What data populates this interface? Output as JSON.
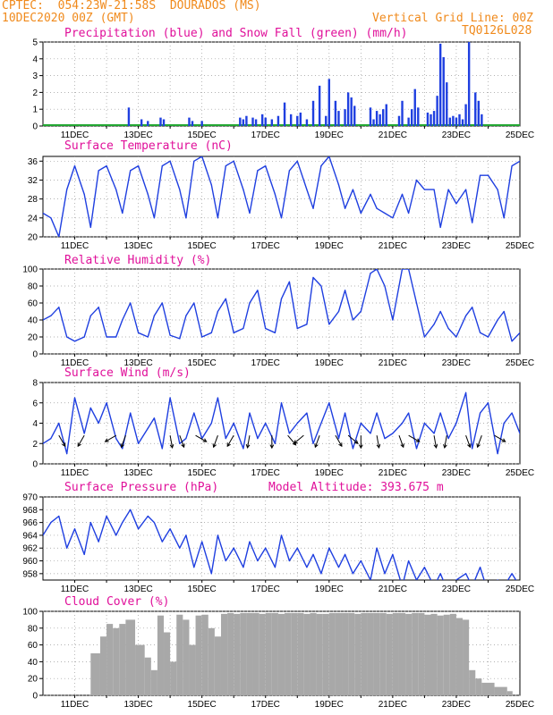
{
  "header": {
    "line1": "CPTEC:  054:23W-21:58S  DOURADOS (MS)",
    "line2": "10DEC2020 00Z (GMT)",
    "grid_note": "Vertical Grid Line: 00Z",
    "code": "TQ0126L028"
  },
  "colors": {
    "header": "#f08a1c",
    "title": "#e0109a",
    "series": "#1f3fe0",
    "snow": "#22a832",
    "cloud": "#a8a8a8",
    "grid": "#9a9a9a",
    "arrows": "#000000"
  },
  "chart_data": [
    {
      "id": "precip",
      "type": "bar",
      "title": "Precipitation (blue) and Snow Fall (green) (mm/h)",
      "x_ticks": [
        "11DEC",
        "13DEC",
        "15DEC",
        "17DEC",
        "19DEC",
        "21DEC",
        "23DEC",
        "25DEC"
      ],
      "ylim": [
        0,
        5
      ],
      "yticks": [
        0,
        1,
        2,
        3,
        4,
        5
      ],
      "grid": true,
      "series_color": "blue",
      "x_days": [
        2.7,
        3.1,
        3.3,
        3.7,
        3.8,
        4.6,
        4.7,
        5.0,
        6.2,
        6.3,
        6.4,
        6.6,
        6.7,
        6.9,
        7.0,
        7.2,
        7.4,
        7.6,
        7.8,
        8.0,
        8.1,
        8.3,
        8.5,
        8.7,
        8.9,
        9.0,
        9.2,
        9.3,
        9.5,
        9.6,
        9.7,
        9.8,
        10.3,
        10.4,
        10.5,
        10.6,
        10.7,
        10.8,
        11.2,
        11.3,
        11.5,
        11.6,
        11.7,
        11.8,
        12.1,
        12.2,
        12.3,
        12.4,
        12.5,
        12.6,
        12.7,
        12.8,
        12.9,
        13.0,
        13.1,
        13.2,
        13.3,
        13.4,
        13.6,
        13.7,
        13.8
      ],
      "values": [
        1.1,
        0.4,
        0.3,
        0.5,
        0.4,
        0.5,
        0.3,
        0.3,
        0.5,
        0.4,
        0.6,
        0.5,
        0.4,
        0.7,
        0.5,
        0.4,
        0.6,
        1.4,
        0.7,
        0.6,
        0.8,
        0.4,
        1.5,
        2.4,
        0.6,
        2.8,
        1.5,
        0.9,
        1.0,
        2.0,
        1.7,
        1.2,
        1.1,
        0.4,
        0.9,
        0.7,
        1.0,
        1.3,
        0.6,
        1.5,
        0.5,
        1.0,
        2.2,
        1.1,
        0.8,
        0.7,
        0.9,
        1.8,
        4.9,
        4.1,
        2.6,
        0.5,
        0.6,
        0.5,
        0.7,
        0.4,
        1.3,
        5.0,
        2.0,
        1.5,
        0.7
      ],
      "snow_values": [
        0
      ]
    },
    {
      "id": "temp",
      "type": "line",
      "title": "Surface Temperature (nC)",
      "x_ticks": [
        "11DEC",
        "13DEC",
        "15DEC",
        "17DEC",
        "19DEC",
        "21DEC",
        "23DEC",
        "25DEC"
      ],
      "ylim": [
        20,
        37
      ],
      "yticks": [
        20,
        24,
        28,
        32,
        36
      ],
      "grid": true,
      "x_days": [
        0,
        0.25,
        0.5,
        0.75,
        1,
        1.3,
        1.5,
        1.75,
        2,
        2.3,
        2.5,
        2.75,
        3,
        3.3,
        3.5,
        3.75,
        4,
        4.3,
        4.5,
        4.75,
        5,
        5.3,
        5.5,
        5.75,
        6,
        6.3,
        6.5,
        6.75,
        7,
        7.3,
        7.5,
        7.75,
        8,
        8.3,
        8.5,
        8.75,
        9,
        9.3,
        9.5,
        9.75,
        10,
        10.3,
        10.5,
        10.75,
        11,
        11.3,
        11.5,
        11.75,
        12,
        12.3,
        12.5,
        12.75,
        13,
        13.3,
        13.5,
        13.75,
        14,
        14.3,
        14.5,
        14.75,
        15
      ],
      "values": [
        25,
        24,
        20,
        30,
        35,
        29,
        22,
        34,
        35,
        30,
        25,
        34,
        35,
        29,
        24,
        35,
        36,
        30,
        24,
        36,
        37,
        31,
        24,
        35,
        36,
        30,
        25,
        34,
        35,
        29,
        24,
        34,
        36,
        30,
        26,
        35,
        37,
        31,
        26,
        30,
        25,
        29,
        26,
        25,
        24,
        29,
        25,
        32,
        30,
        30,
        22,
        30,
        27,
        30,
        23,
        33,
        33,
        30,
        24,
        35,
        36
      ]
    },
    {
      "id": "rh",
      "type": "line",
      "title": "Relative Humidity (%)",
      "x_ticks": [
        "11DEC",
        "13DEC",
        "15DEC",
        "17DEC",
        "19DEC",
        "21DEC",
        "23DEC",
        "25DEC"
      ],
      "ylim": [
        0,
        100
      ],
      "yticks": [
        0,
        20,
        40,
        60,
        80,
        100
      ],
      "grid": true,
      "x_days": [
        0,
        0.25,
        0.5,
        0.75,
        1,
        1.3,
        1.5,
        1.75,
        2,
        2.3,
        2.5,
        2.75,
        3,
        3.3,
        3.5,
        3.75,
        4,
        4.3,
        4.5,
        4.75,
        5,
        5.3,
        5.5,
        5.75,
        6,
        6.3,
        6.5,
        6.75,
        7,
        7.3,
        7.5,
        7.75,
        8,
        8.3,
        8.5,
        8.75,
        9,
        9.3,
        9.5,
        9.75,
        10,
        10.3,
        10.5,
        10.75,
        11,
        11.3,
        11.5,
        11.75,
        12,
        12.3,
        12.5,
        12.75,
        13,
        13.3,
        13.5,
        13.75,
        14,
        14.3,
        14.5,
        14.75,
        15
      ],
      "values": [
        40,
        45,
        55,
        20,
        15,
        20,
        45,
        55,
        20,
        20,
        40,
        60,
        25,
        20,
        45,
        60,
        22,
        18,
        45,
        60,
        20,
        25,
        50,
        65,
        25,
        30,
        60,
        75,
        30,
        25,
        65,
        85,
        30,
        35,
        90,
        80,
        35,
        50,
        75,
        40,
        50,
        95,
        100,
        80,
        40,
        100,
        100,
        60,
        20,
        35,
        50,
        30,
        20,
        45,
        55,
        25,
        20,
        40,
        50,
        15,
        25
      ]
    },
    {
      "id": "wind",
      "type": "line",
      "title": "Surface Wind (m/s)",
      "x_ticks": [
        "11DEC",
        "13DEC",
        "15DEC",
        "17DEC",
        "19DEC",
        "21DEC",
        "23DEC",
        "25DEC"
      ],
      "ylim": [
        0,
        8
      ],
      "yticks": [
        0,
        2,
        4,
        6,
        8
      ],
      "grid": true,
      "x_days": [
        0,
        0.25,
        0.5,
        0.75,
        1,
        1.3,
        1.5,
        1.75,
        2,
        2.3,
        2.5,
        2.75,
        3,
        3.3,
        3.5,
        3.75,
        4,
        4.3,
        4.5,
        4.75,
        5,
        5.3,
        5.5,
        5.75,
        6,
        6.3,
        6.5,
        6.75,
        7,
        7.3,
        7.5,
        7.75,
        8,
        8.3,
        8.5,
        8.75,
        9,
        9.3,
        9.5,
        9.75,
        10,
        10.3,
        10.5,
        10.75,
        11,
        11.3,
        11.5,
        11.75,
        12,
        12.3,
        12.5,
        12.75,
        13,
        13.3,
        13.5,
        13.75,
        14,
        14.3,
        14.5,
        14.75,
        15
      ],
      "values": [
        2,
        2.5,
        4,
        1,
        6.5,
        3,
        5.5,
        4,
        6,
        2.5,
        1.5,
        5,
        2,
        3.5,
        4.5,
        1.5,
        6.5,
        2,
        2.5,
        5,
        2.5,
        4,
        6.5,
        2.5,
        4,
        1.5,
        5,
        2.5,
        4,
        2,
        6,
        3,
        4,
        5,
        2,
        4,
        6,
        2.5,
        5,
        1.5,
        4,
        3,
        5,
        2.5,
        3,
        4,
        5,
        1.5,
        4,
        3,
        5,
        2.5,
        4,
        7,
        1.5,
        5,
        6,
        1,
        4,
        5,
        3
      ],
      "vector_days": [
        0.5,
        1.3,
        2.3,
        2.6,
        4.0,
        4.3,
        4.8,
        5.5,
        6.0,
        6.5,
        7.2,
        7.7,
        8.2,
        8.7,
        9.2,
        9.6,
        10.0,
        10.5,
        11.2,
        11.5,
        12.3,
        12.7,
        13.3,
        13.8,
        14.2
      ],
      "vector_dir_deg": [
        150,
        210,
        240,
        200,
        170,
        160,
        120,
        200,
        210,
        190,
        180,
        140,
        230,
        200,
        150,
        130,
        180,
        170,
        160,
        120,
        170,
        190,
        160,
        200,
        120
      ]
    },
    {
      "id": "pres",
      "type": "line",
      "title": "Surface Pressure (hPa)",
      "model_altitude_label": "Model Altitude: 393.675 m",
      "x_ticks": [
        "11DEC",
        "13DEC",
        "15DEC",
        "17DEC",
        "19DEC",
        "21DEC",
        "23DEC",
        "25DEC"
      ],
      "ylim": [
        957,
        970
      ],
      "yticks": [
        958,
        960,
        962,
        964,
        966,
        968,
        970
      ],
      "grid": true,
      "x_days": [
        0,
        0.25,
        0.5,
        0.75,
        1,
        1.3,
        1.5,
        1.75,
        2,
        2.3,
        2.5,
        2.75,
        3,
        3.3,
        3.5,
        3.75,
        4,
        4.3,
        4.5,
        4.75,
        5,
        5.3,
        5.5,
        5.75,
        6,
        6.3,
        6.5,
        6.75,
        7,
        7.3,
        7.5,
        7.75,
        8,
        8.3,
        8.5,
        8.75,
        9,
        9.3,
        9.5,
        9.75,
        10,
        10.3,
        10.5,
        10.75,
        11,
        11.3,
        11.5,
        11.75,
        12,
        12.3,
        12.5,
        12.75,
        13,
        13.3,
        13.5,
        13.75,
        14,
        14.3,
        14.5,
        14.75,
        15
      ],
      "values": [
        964,
        966,
        967,
        962,
        965,
        961,
        966,
        963,
        967,
        964,
        966,
        968,
        965,
        967,
        966,
        963,
        965,
        962,
        964,
        959,
        963,
        958,
        964,
        960,
        962,
        959,
        963,
        960,
        962,
        959,
        964,
        960,
        962,
        959,
        961,
        958,
        962,
        959,
        961,
        958,
        960,
        957,
        962,
        958,
        961,
        956,
        960,
        957,
        959,
        956,
        958,
        955,
        957,
        958,
        956,
        959,
        955,
        957,
        956,
        958,
        956
      ]
    },
    {
      "id": "cloud",
      "type": "bar",
      "title": "Cloud Cover (%)",
      "x_ticks": [
        "11DEC",
        "13DEC",
        "15DEC",
        "17DEC",
        "19DEC",
        "21DEC",
        "23DEC",
        "25DEC"
      ],
      "ylim": [
        0,
        100
      ],
      "yticks": [
        0,
        20,
        40,
        60,
        80,
        100
      ],
      "grid": true,
      "x_days": [
        1.5,
        1.8,
        2.0,
        2.2,
        2.4,
        2.6,
        2.9,
        3.2,
        3.4,
        3.6,
        3.8,
        4.0,
        4.2,
        4.4,
        4.6,
        4.8,
        5.0,
        5.2,
        5.4,
        5.6,
        5.8,
        6.0,
        6.2,
        6.4,
        6.6,
        6.8,
        7.0,
        7.2,
        7.4,
        7.6,
        7.8,
        8.0,
        8.2,
        8.4,
        8.6,
        8.8,
        9.0,
        9.2,
        9.4,
        9.6,
        9.8,
        10.0,
        10.2,
        10.4,
        10.6,
        10.8,
        11.0,
        11.2,
        11.4,
        11.6,
        11.8,
        12.0,
        12.2,
        12.4,
        12.6,
        12.8,
        13.0,
        13.2,
        13.4,
        13.6,
        13.8,
        14.2,
        14.6
      ],
      "values": [
        50,
        70,
        85,
        80,
        85,
        90,
        60,
        45,
        30,
        95,
        75,
        40,
        96,
        90,
        60,
        95,
        96,
        80,
        70,
        97,
        98,
        97,
        98,
        98,
        98,
        97,
        98,
        98,
        97,
        98,
        98,
        98,
        97,
        98,
        97,
        97,
        98,
        98,
        98,
        98,
        97,
        98,
        98,
        98,
        98,
        97,
        98,
        98,
        97,
        98,
        98,
        96,
        97,
        95,
        96,
        97,
        92,
        90,
        30,
        20,
        15,
        10,
        5
      ]
    }
  ]
}
